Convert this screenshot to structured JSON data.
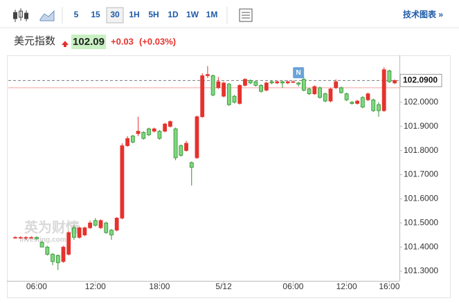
{
  "toolbar": {
    "intervals": [
      "5",
      "15",
      "30",
      "1H",
      "5H",
      "1D",
      "1W",
      "1M"
    ],
    "selected": 2,
    "tech_chart": "技术图表 »"
  },
  "header": {
    "name": "美元指数",
    "price": "102.09",
    "change": "+0.03",
    "change_pct": "(+0.03%)"
  },
  "watermark": {
    "brand": "英为财情",
    "site": "Investing.com"
  },
  "chart_data": {
    "type": "candlestick",
    "categories": [
      null,
      null,
      null,
      null,
      "06:00",
      null,
      null,
      null,
      null,
      null,
      null,
      null,
      null,
      null,
      null,
      "12:00",
      null,
      null,
      null,
      null,
      null,
      null,
      null,
      null,
      null,
      null,
      null,
      "18:00",
      null,
      null,
      null,
      null,
      null,
      null,
      null,
      null,
      null,
      null,
      null,
      "5/12",
      null,
      null,
      null,
      null,
      null,
      null,
      null,
      null,
      null,
      null,
      null,
      null,
      "06:00",
      null,
      null,
      null,
      null,
      null,
      null,
      null,
      null,
      null,
      "12:00",
      null,
      null,
      null,
      null,
      null,
      null,
      null,
      "16:00",
      null
    ],
    "open": [
      101.44,
      101.44,
      101.44,
      101.44,
      101.44,
      101.42,
      101.4,
      101.37,
      101.365,
      101.34,
      101.37,
      101.48,
      101.44,
      101.45,
      101.48,
      101.51,
      101.48,
      101.5,
      101.47,
      101.47,
      101.52,
      101.82,
      101.86,
      101.87,
      101.875,
      101.89,
      101.88,
      101.88,
      101.88,
      101.9,
      101.89,
      101.82,
      101.8,
      101.75,
      101.77,
      101.94,
      102.11,
      102.11,
      102.06,
      102.025,
      102.075,
      102.025,
      101.995,
      102.07,
      102.09,
      102.085,
      102.07,
      102.05,
      102.085,
      102.08,
      102.085,
      102.08,
      102.085,
      102.08,
      102.095,
      102.055,
      102.035,
      102.06,
      102.035,
      102.005,
      102.06,
      102.06,
      102.035,
      102.0,
      101.995,
      102.02,
      102.01,
      102.01,
      101.99,
      101.965,
      102.13,
      102.08
    ],
    "high": [
      101.445,
      101.445,
      101.445,
      101.445,
      101.445,
      101.425,
      101.405,
      101.375,
      101.37,
      101.405,
      101.465,
      101.49,
      101.485,
      101.485,
      101.51,
      101.52,
      101.515,
      101.505,
      101.475,
      101.525,
      101.83,
      101.86,
      101.865,
      101.94,
      101.88,
      101.895,
      101.895,
      101.885,
      101.915,
      101.925,
      101.895,
      101.825,
      101.84,
      101.755,
      101.945,
      102.12,
      102.15,
      102.115,
      102.105,
      102.085,
      102.08,
      102.03,
      102.075,
      102.1,
      102.095,
      102.09,
      102.075,
      102.085,
      102.09,
      102.09,
      102.09,
      102.09,
      102.09,
      102.085,
      102.105,
      102.06,
      102.07,
      102.065,
      102.04,
      102.06,
      102.095,
      102.065,
      102.04,
      102.005,
      102.01,
      102.025,
      102.04,
      102.015,
      102.0,
      102.145,
      102.135,
      102.095
    ],
    "low": [
      101.435,
      101.435,
      101.43,
      101.435,
      101.43,
      101.4,
      101.365,
      101.325,
      101.305,
      101.335,
      101.365,
      101.43,
      101.435,
      101.445,
      101.475,
      101.485,
      101.475,
      101.455,
      101.43,
      101.465,
      101.515,
      101.815,
      101.83,
      101.86,
      101.845,
      101.86,
      101.875,
      101.845,
      101.875,
      101.895,
      101.76,
      101.775,
      101.795,
      101.655,
      101.765,
      101.935,
      102.1,
      102.025,
      102.055,
      102.02,
      101.985,
      101.995,
      101.99,
      102.065,
      102.075,
      102.065,
      102.04,
      102.045,
      102.075,
      102.075,
      102.06,
      102.075,
      102.08,
      102.065,
      102.045,
      102.03,
      102.03,
      102.015,
      102.0,
      102.0,
      102.055,
      102.035,
      102.005,
      101.99,
      101.99,
      101.975,
      102.005,
      101.96,
      101.94,
      101.96,
      102.08,
      102.075
    ],
    "close": [
      101.44,
      101.44,
      101.44,
      101.44,
      101.435,
      101.4,
      101.37,
      101.34,
      101.335,
      101.4,
      101.46,
      101.44,
      101.48,
      101.48,
      101.5,
      101.49,
      101.51,
      101.46,
      101.45,
      101.52,
      101.82,
      101.85,
      101.835,
      101.88,
      101.85,
      101.865,
      101.89,
      101.85,
      101.91,
      101.92,
      101.77,
      101.78,
      101.83,
      101.73,
      101.94,
      102.11,
      102.115,
      102.03,
      102.085,
      102.08,
      101.99,
      102.0,
      102.07,
      102.095,
      102.08,
      102.07,
      102.045,
      102.08,
      102.08,
      102.085,
      102.08,
      102.085,
      102.085,
      102.075,
      102.05,
      102.035,
      102.065,
      102.02,
      102.005,
      102.055,
      102.085,
      102.04,
      102.01,
      101.995,
      102.005,
      101.98,
      102.035,
      101.965,
      101.965,
      102.135,
      102.085,
      102.09
    ],
    "up_color": "#e5322d",
    "down_color": "#7fd67f",
    "down_edge": "#2f8f2f",
    "last_price": {
      "value": 102.09,
      "label": "102.0900"
    },
    "prev_close": 102.06,
    "marker": {
      "label": "N",
      "index": 53
    },
    "ylim": [
      101.26,
      102.18
    ],
    "yticks": [
      {
        "value": 101.3,
        "label": "101.3000"
      },
      {
        "value": 101.4,
        "label": "101.4000"
      },
      {
        "value": 101.5,
        "label": "101.5000"
      },
      {
        "value": 101.6,
        "label": "101.6000"
      },
      {
        "value": 101.7,
        "label": "101.7000"
      },
      {
        "value": 101.8,
        "label": "101.8000"
      },
      {
        "value": 101.9,
        "label": "101.9000"
      },
      {
        "value": 102.0,
        "label": "102.0000"
      }
    ]
  }
}
